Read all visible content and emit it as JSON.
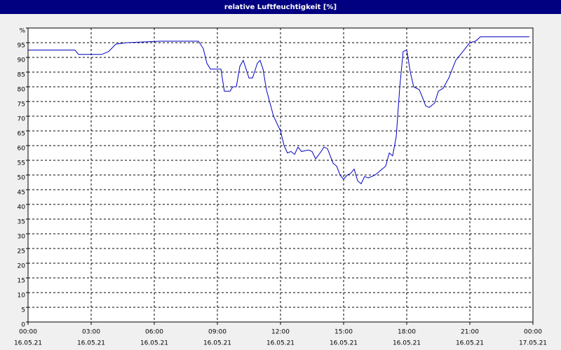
{
  "chart_data": {
    "type": "line",
    "title": "relative Luftfeuchtigkeit [%]",
    "xlim": [
      0,
      24
    ],
    "xticks": [
      {
        "value": 0,
        "label": "00:00"
      },
      {
        "value": 3,
        "label": "03:00"
      },
      {
        "value": 6,
        "label": "06:00"
      },
      {
        "value": 9,
        "label": "09:00"
      },
      {
        "value": 12,
        "label": "12:00"
      },
      {
        "value": 15,
        "label": "15:00"
      },
      {
        "value": 18,
        "label": "18:00"
      },
      {
        "value": 21,
        "label": "21:00"
      },
      {
        "value": 24,
        "label": "00:00"
      }
    ],
    "xtick_dates": [
      "16.05.21",
      "16.05.21",
      "16.05.21",
      "16.05.21",
      "16.05.21",
      "16.05.21",
      "16.05.21",
      "16.05.21",
      "17.05.21"
    ],
    "ylim": [
      0,
      100
    ],
    "yticks": [
      0,
      5,
      10,
      15,
      20,
      25,
      30,
      35,
      40,
      45,
      50,
      55,
      60,
      65,
      70,
      75,
      80,
      85,
      90,
      95,
      {
        "value": 100,
        "label": "%"
      }
    ],
    "grid": true,
    "series": [
      {
        "color": "#0000c0",
        "x": [
          0,
          2.23,
          2.4,
          3.5,
          3.83,
          4.17,
          4.67,
          6.33,
          8.1,
          8.33,
          8.5,
          8.67,
          9.17,
          9.33,
          9.6,
          9.73,
          9.9,
          10.07,
          10.23,
          10.5,
          10.67,
          10.9,
          11.03,
          11.17,
          11.33,
          11.67,
          12,
          12.17,
          12.33,
          12.5,
          12.67,
          12.83,
          13,
          13.33,
          13.5,
          13.67,
          13.83,
          14.07,
          14.23,
          14.5,
          14.67,
          14.83,
          15,
          15.17,
          15.33,
          15.5,
          15.67,
          15.83,
          16,
          16.17,
          16.5,
          16.83,
          17,
          17.17,
          17.33,
          17.5,
          17.67,
          17.83,
          18,
          18.17,
          18.33,
          18.6,
          18.77,
          18.9,
          19.07,
          19.33,
          19.5,
          19.73,
          20,
          20.33,
          20.67,
          21,
          21.27,
          21.5,
          23.83
        ],
        "values": [
          92.5,
          92.5,
          91,
          91,
          92,
          94.5,
          95,
          95.5,
          95.5,
          93,
          88,
          86,
          86,
          78.5,
          78.5,
          80,
          80,
          87,
          89,
          83,
          83,
          88,
          89,
          86,
          79,
          70,
          65,
          60,
          57.5,
          58,
          57,
          59.5,
          58,
          58.5,
          58,
          55.5,
          57,
          59.5,
          59,
          54,
          53,
          50,
          48.5,
          50,
          50.5,
          52,
          48,
          47,
          49.5,
          49,
          50,
          52,
          53,
          57.5,
          56.5,
          63,
          80,
          92,
          92.5,
          85,
          80,
          79,
          76,
          73.5,
          73,
          74.5,
          78.5,
          79.5,
          83,
          89,
          92,
          95,
          95.5,
          97,
          97
        ]
      }
    ]
  }
}
